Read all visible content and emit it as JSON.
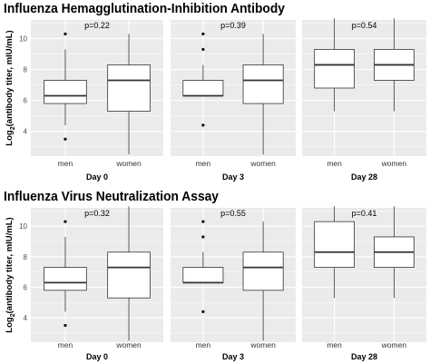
{
  "chart_data": [
    {
      "type": "box",
      "title": "Influenza Hemagglutination-Inhibition Antibody",
      "ylabel": "Log2(antibody titer, mIU/mL)",
      "ylim": [
        2.4,
        11.2
      ],
      "yticks": [
        4,
        6,
        8,
        10
      ],
      "grid": true,
      "panels": [
        {
          "label": "Day 0",
          "p_value": "p=0.22",
          "boxes": [
            {
              "category": "men",
              "whisker_low": 4.4,
              "q1": 5.8,
              "median": 6.3,
              "q3": 7.3,
              "whisker_high": 9.3,
              "outliers": [
                10.3,
                3.5
              ]
            },
            {
              "category": "women",
              "whisker_low": 2.5,
              "q1": 5.3,
              "median": 7.3,
              "q3": 8.3,
              "whisker_high": 10.3,
              "outliers": []
            }
          ]
        },
        {
          "label": "Day 3",
          "p_value": "p=0.39",
          "boxes": [
            {
              "category": "men",
              "whisker_low": 6.3,
              "q1": 6.3,
              "median": 6.3,
              "q3": 7.3,
              "whisker_high": 8.3,
              "outliers": [
                10.3,
                9.3,
                4.4
              ]
            },
            {
              "category": "women",
              "whisker_low": 2.5,
              "q1": 5.8,
              "median": 7.3,
              "q3": 8.3,
              "whisker_high": 10.3,
              "outliers": []
            }
          ]
        },
        {
          "label": "Day 28",
          "p_value": "p=0.54",
          "boxes": [
            {
              "category": "men",
              "whisker_low": 5.3,
              "q1": 6.8,
              "median": 8.3,
              "q3": 9.3,
              "whisker_high": 11.3,
              "outliers": []
            },
            {
              "category": "women",
              "whisker_low": 5.3,
              "q1": 7.3,
              "median": 8.3,
              "q3": 9.3,
              "whisker_high": 11.3,
              "outliers": []
            }
          ]
        }
      ]
    },
    {
      "type": "box",
      "title": "Influenza Virus Neutralization Assay",
      "ylabel": "Log2(antibody titer, mIU/mL)",
      "ylim": [
        2.4,
        11.2
      ],
      "yticks": [
        4,
        6,
        8,
        10
      ],
      "grid": true,
      "panels": [
        {
          "label": "Day 0",
          "p_value": "p=0.32",
          "boxes": [
            {
              "category": "men",
              "whisker_low": 4.4,
              "q1": 5.8,
              "median": 6.3,
              "q3": 7.3,
              "whisker_high": 9.3,
              "outliers": [
                10.3,
                3.5
              ]
            },
            {
              "category": "women",
              "whisker_low": 2.5,
              "q1": 5.3,
              "median": 7.3,
              "q3": 8.3,
              "whisker_high": 11.3,
              "outliers": []
            }
          ]
        },
        {
          "label": "Day 3",
          "p_value": "p=0.55",
          "boxes": [
            {
              "category": "men",
              "whisker_low": 6.3,
              "q1": 6.3,
              "median": 6.3,
              "q3": 7.3,
              "whisker_high": 8.3,
              "outliers": [
                10.3,
                9.3,
                4.4
              ]
            },
            {
              "category": "women",
              "whisker_low": 2.5,
              "q1": 5.8,
              "median": 7.3,
              "q3": 8.3,
              "whisker_high": 10.3,
              "outliers": []
            }
          ]
        },
        {
          "label": "Day 28",
          "p_value": "p=0.41",
          "boxes": [
            {
              "category": "men",
              "whisker_low": 5.3,
              "q1": 7.3,
              "median": 8.3,
              "q3": 10.3,
              "whisker_high": 11.3,
              "outliers": []
            },
            {
              "category": "women",
              "whisker_low": 5.3,
              "q1": 7.3,
              "median": 8.3,
              "q3": 9.3,
              "whisker_high": 11.3,
              "outliers": []
            }
          ]
        }
      ]
    }
  ],
  "colors": {
    "panel_background": "#ebebeb",
    "gridline": "#ffffff",
    "box_fill": "#ffffff",
    "box_stroke": "#333333",
    "text": "#000000"
  }
}
